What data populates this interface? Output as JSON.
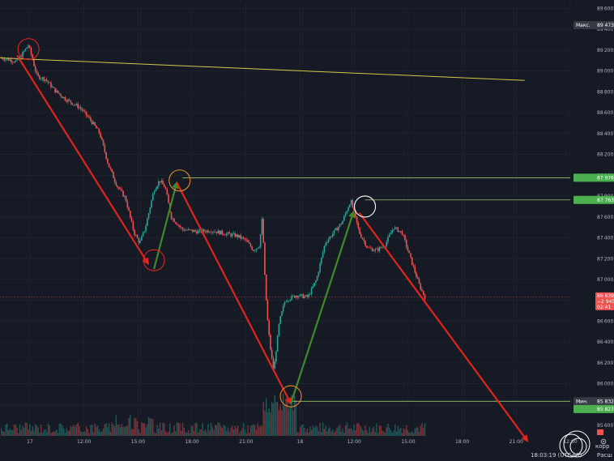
{
  "chart_data": {
    "type": "candlestick",
    "y_range": [
      85500,
      89650
    ],
    "y_ticks": [
      85600,
      85800,
      86000,
      86200,
      86400,
      86600,
      86800,
      87000,
      87200,
      87400,
      87600,
      87800,
      88000,
      88200,
      88400,
      88600,
      88800,
      89000,
      89200,
      89400,
      89600
    ],
    "x_ticks": [
      "17",
      "12:00",
      "15:00",
      "18:00",
      "21:00",
      "18",
      "12:00",
      "15:00",
      "18:00",
      "21:00",
      "12:00"
    ],
    "price_path_points": [
      [
        0,
        89130
      ],
      [
        0.03,
        89090
      ],
      [
        0.05,
        89250
      ],
      [
        0.065,
        88950
      ],
      [
        0.08,
        88920
      ],
      [
        0.095,
        88820
      ],
      [
        0.115,
        88730
      ],
      [
        0.14,
        88650
      ],
      [
        0.16,
        88520
      ],
      [
        0.175,
        88400
      ],
      [
        0.19,
        88100
      ],
      [
        0.205,
        87900
      ],
      [
        0.22,
        87780
      ],
      [
        0.235,
        87450
      ],
      [
        0.245,
        87350
      ],
      [
        0.255,
        87500
      ],
      [
        0.27,
        87860
      ],
      [
        0.28,
        87950
      ],
      [
        0.29,
        87880
      ],
      [
        0.3,
        87600
      ],
      [
        0.32,
        87480
      ],
      [
        0.345,
        87460
      ],
      [
        0.37,
        87470
      ],
      [
        0.395,
        87440
      ],
      [
        0.415,
        87420
      ],
      [
        0.43,
        87380
      ],
      [
        0.445,
        87280
      ],
      [
        0.455,
        87330
      ],
      [
        0.46,
        87600
      ],
      [
        0.465,
        86950
      ],
      [
        0.47,
        86550
      ],
      [
        0.475,
        86300
      ],
      [
        0.48,
        86120
      ],
      [
        0.49,
        86600
      ],
      [
        0.5,
        86800
      ],
      [
        0.52,
        86850
      ],
      [
        0.54,
        86830
      ],
      [
        0.555,
        87000
      ],
      [
        0.57,
        87350
      ],
      [
        0.585,
        87450
      ],
      [
        0.6,
        87550
      ],
      [
        0.615,
        87760
      ],
      [
        0.63,
        87450
      ],
      [
        0.645,
        87300
      ],
      [
        0.66,
        87280
      ],
      [
        0.675,
        87330
      ],
      [
        0.69,
        87500
      ],
      [
        0.705,
        87450
      ],
      [
        0.72,
        87200
      ],
      [
        0.735,
        86950
      ],
      [
        0.745,
        86830
      ]
    ],
    "horizontal_levels": [
      87976,
      87763,
      85832,
      85827
    ],
    "price_labels": {
      "max_label": "Макс.",
      "max_value": "89 473",
      "level1": "87 976",
      "level2": "87 763",
      "last_value": "86 839",
      "last_change": "−2 945",
      "last_time": "02:41",
      "min_label": "Мин.",
      "min_value": "85 832",
      "min_tag": "85 827"
    },
    "trendline": {
      "start": [
        0,
        89125
      ],
      "end": [
        0.92,
        88910
      ],
      "color": "#d6c84a"
    },
    "arrows": [
      {
        "from": [
          0.03,
          89150
        ],
        "to": [
          0.26,
          87150
        ],
        "color": "#e0241c"
      },
      {
        "from": [
          0.27,
          87100
        ],
        "to": [
          0.31,
          87930
        ],
        "color": "#3d8a2a"
      },
      {
        "from": [
          0.31,
          87930
        ],
        "to": [
          0.51,
          85810
        ],
        "color": "#e0241c"
      },
      {
        "from": [
          0.51,
          85810
        ],
        "to": [
          0.62,
          87650
        ],
        "color": "#3d8a2a"
      },
      {
        "from": [
          0.63,
          87640
        ],
        "to": [
          0.925,
          85450
        ],
        "color": "#e0241c"
      }
    ],
    "circles": [
      {
        "center": [
          0.05,
          89210
        ],
        "color": "#e0241c"
      },
      {
        "center": [
          0.27,
          87185
        ],
        "color": "#e0241c"
      },
      {
        "center": [
          0.315,
          87950
        ],
        "color": "#e08a2a"
      },
      {
        "center": [
          0.51,
          85880
        ],
        "color": "#e08a2a"
      },
      {
        "center": [
          0.64,
          87700
        ],
        "color": "#ffffff"
      }
    ],
    "colors": {
      "background": "#161a25",
      "up": "#26a69a",
      "down": "#ef5350",
      "grid": "#222631",
      "level_line": "#b5e07a",
      "level_tag": "#4caf50",
      "last_price_tag": "#ef5350",
      "max_min_tag": "#363a45"
    }
  },
  "status": {
    "time": "18:03:19 (UTC+3)",
    "text1": "Расш",
    "text2": "корр",
    "settings_icon": "gear-icon"
  }
}
